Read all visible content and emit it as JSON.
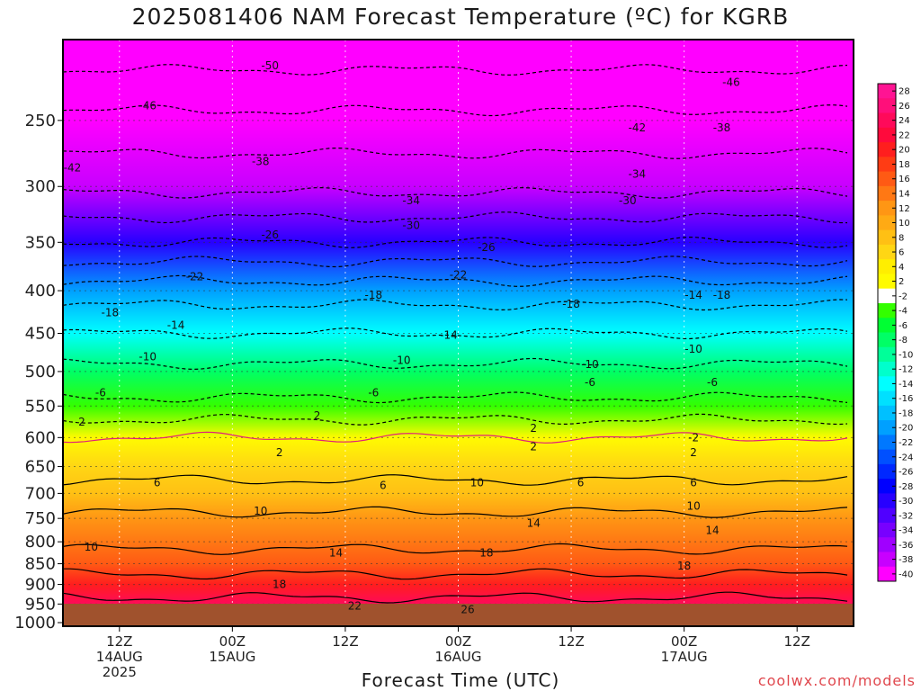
{
  "title": "2025081406 NAM Forecast Temperature (ºC) for KGRB",
  "credit": "coolwx.com/models",
  "chart_data": {
    "type": "heatmap",
    "title": "2025081406 NAM Forecast Temperature (ºC) for KGRB",
    "xlabel": "Forecast Time (UTC)",
    "ylabel": "",
    "x_range_hours": [
      6,
      90
    ],
    "y_axis_ticks": [
      250,
      300,
      350,
      400,
      450,
      500,
      550,
      600,
      650,
      700,
      750,
      800,
      850,
      900,
      950,
      1000
    ],
    "y_range_hpa": [
      200,
      1010
    ],
    "y_scale": "log-pressure",
    "x_ticks": [
      {
        "hour": 12,
        "label": "12Z",
        "sub": "14AUG",
        "sub2": "2025"
      },
      {
        "hour": 24,
        "label": "00Z",
        "sub": "15AUG",
        "sub2": ""
      },
      {
        "hour": 36,
        "label": "12Z",
        "sub": "",
        "sub2": ""
      },
      {
        "hour": 48,
        "label": "00Z",
        "sub": "16AUG",
        "sub2": ""
      },
      {
        "hour": 60,
        "label": "12Z",
        "sub": "",
        "sub2": ""
      },
      {
        "hour": 72,
        "label": "00Z",
        "sub": "17AUG",
        "sub2": ""
      },
      {
        "hour": 84,
        "label": "12Z",
        "sub": "",
        "sub2": ""
      }
    ],
    "grid": true,
    "colorbar": {
      "labels": [
        28,
        26,
        24,
        22,
        20,
        18,
        16,
        14,
        12,
        10,
        8,
        6,
        4,
        2,
        -2,
        -4,
        -6,
        -8,
        -10,
        -12,
        -14,
        -16,
        -18,
        -20,
        -22,
        -24,
        -26,
        -28,
        -30,
        -32,
        -34,
        -36,
        -38,
        -40
      ],
      "colors": [
        "#ff1493",
        "#ff0f7a",
        "#ff0a5a",
        "#ff0a3c",
        "#ff1e1e",
        "#ff3c14",
        "#ff5a14",
        "#ff7814",
        "#ff9614",
        "#ffaa14",
        "#ffc014",
        "#ffd614",
        "#ffee00",
        "#fffb00",
        "#ffffff",
        "#33ff00",
        "#00ff33",
        "#00ff66",
        "#00ff99",
        "#00ffcc",
        "#00ffff",
        "#00e0ff",
        "#00c0ff",
        "#00a0ff",
        "#0078ff",
        "#0050ff",
        "#0028ff",
        "#0000ff",
        "#2800ff",
        "#5000ff",
        "#7800ff",
        "#a000ff",
        "#c800ff",
        "#ff00ff"
      ]
    },
    "profile_levels_hpa": [
      200,
      250,
      300,
      350,
      400,
      450,
      500,
      550,
      600,
      650,
      700,
      750,
      800,
      850,
      900,
      950,
      1000
    ],
    "profile_temps_c": [
      -53,
      -45,
      -39,
      -30,
      -20,
      -14,
      -9,
      -5,
      2,
      5,
      7,
      11,
      13,
      16,
      20,
      23,
      26
    ],
    "contour_labels": [
      {
        "hour": 15,
        "hpa": 240,
        "value": "-46"
      },
      {
        "hour": 28,
        "hpa": 215,
        "value": "-50"
      },
      {
        "hour": 7,
        "hpa": 285,
        "value": "-42"
      },
      {
        "hour": 27,
        "hpa": 280,
        "value": "-38"
      },
      {
        "hour": 43,
        "hpa": 312,
        "value": "-34"
      },
      {
        "hour": 43,
        "hpa": 334,
        "value": "-30"
      },
      {
        "hour": 28,
        "hpa": 343,
        "value": "-26"
      },
      {
        "hour": 51,
        "hpa": 355,
        "value": "-26"
      },
      {
        "hour": 20,
        "hpa": 385,
        "value": "-22"
      },
      {
        "hour": 48,
        "hpa": 383,
        "value": "-22"
      },
      {
        "hour": 11,
        "hpa": 425,
        "value": "-18"
      },
      {
        "hour": 39,
        "hpa": 405,
        "value": "-18"
      },
      {
        "hour": 60,
        "hpa": 415,
        "value": "-18"
      },
      {
        "hour": 18,
        "hpa": 440,
        "value": "-14"
      },
      {
        "hour": 47,
        "hpa": 452,
        "value": "-14"
      },
      {
        "hour": 15,
        "hpa": 480,
        "value": "-10"
      },
      {
        "hour": 42,
        "hpa": 485,
        "value": "-10"
      },
      {
        "hour": 62,
        "hpa": 490,
        "value": "-10"
      },
      {
        "hour": 10,
        "hpa": 530,
        "value": "-6"
      },
      {
        "hour": 39,
        "hpa": 530,
        "value": "-6"
      },
      {
        "hour": 62,
        "hpa": 515,
        "value": "-6"
      },
      {
        "hour": 8,
        "hpa": 575,
        "value": "2"
      },
      {
        "hour": 33,
        "hpa": 565,
        "value": "2"
      },
      {
        "hour": 56,
        "hpa": 585,
        "value": "2"
      },
      {
        "hour": 29,
        "hpa": 625,
        "value": "2"
      },
      {
        "hour": 56,
        "hpa": 615,
        "value": "2"
      },
      {
        "hour": 16,
        "hpa": 680,
        "value": "6"
      },
      {
        "hour": 40,
        "hpa": 685,
        "value": "6"
      },
      {
        "hour": 61,
        "hpa": 680,
        "value": "6"
      },
      {
        "hour": 27,
        "hpa": 735,
        "value": "10"
      },
      {
        "hour": 9,
        "hpa": 812,
        "value": "10"
      },
      {
        "hour": 50,
        "hpa": 680,
        "value": "10"
      },
      {
        "hour": 56,
        "hpa": 760,
        "value": "14"
      },
      {
        "hour": 35,
        "hpa": 825,
        "value": "14"
      },
      {
        "hour": 51,
        "hpa": 825,
        "value": "18"
      },
      {
        "hour": 29,
        "hpa": 900,
        "value": "18"
      },
      {
        "hour": 37,
        "hpa": 955,
        "value": "22"
      },
      {
        "hour": 49,
        "hpa": 965,
        "value": "26"
      },
      {
        "hour": 77,
        "hpa": 225,
        "value": "-46"
      },
      {
        "hour": 76,
        "hpa": 255,
        "value": "-38"
      },
      {
        "hour": 67,
        "hpa": 255,
        "value": "-42"
      },
      {
        "hour": 67,
        "hpa": 290,
        "value": "-34"
      },
      {
        "hour": 66,
        "hpa": 312,
        "value": "-30"
      },
      {
        "hour": 73,
        "hpa": 405,
        "value": "-14"
      },
      {
        "hour": 76,
        "hpa": 405,
        "value": "-18"
      },
      {
        "hour": 73,
        "hpa": 470,
        "value": "-10"
      },
      {
        "hour": 75,
        "hpa": 515,
        "value": "-6"
      },
      {
        "hour": 73,
        "hpa": 600,
        "value": "-2"
      },
      {
        "hour": 73,
        "hpa": 625,
        "value": "2"
      },
      {
        "hour": 73,
        "hpa": 680,
        "value": "6"
      },
      {
        "hour": 73,
        "hpa": 725,
        "value": "10"
      },
      {
        "hour": 75,
        "hpa": 775,
        "value": "14"
      },
      {
        "hour": 72,
        "hpa": 855,
        "value": "18"
      }
    ]
  }
}
